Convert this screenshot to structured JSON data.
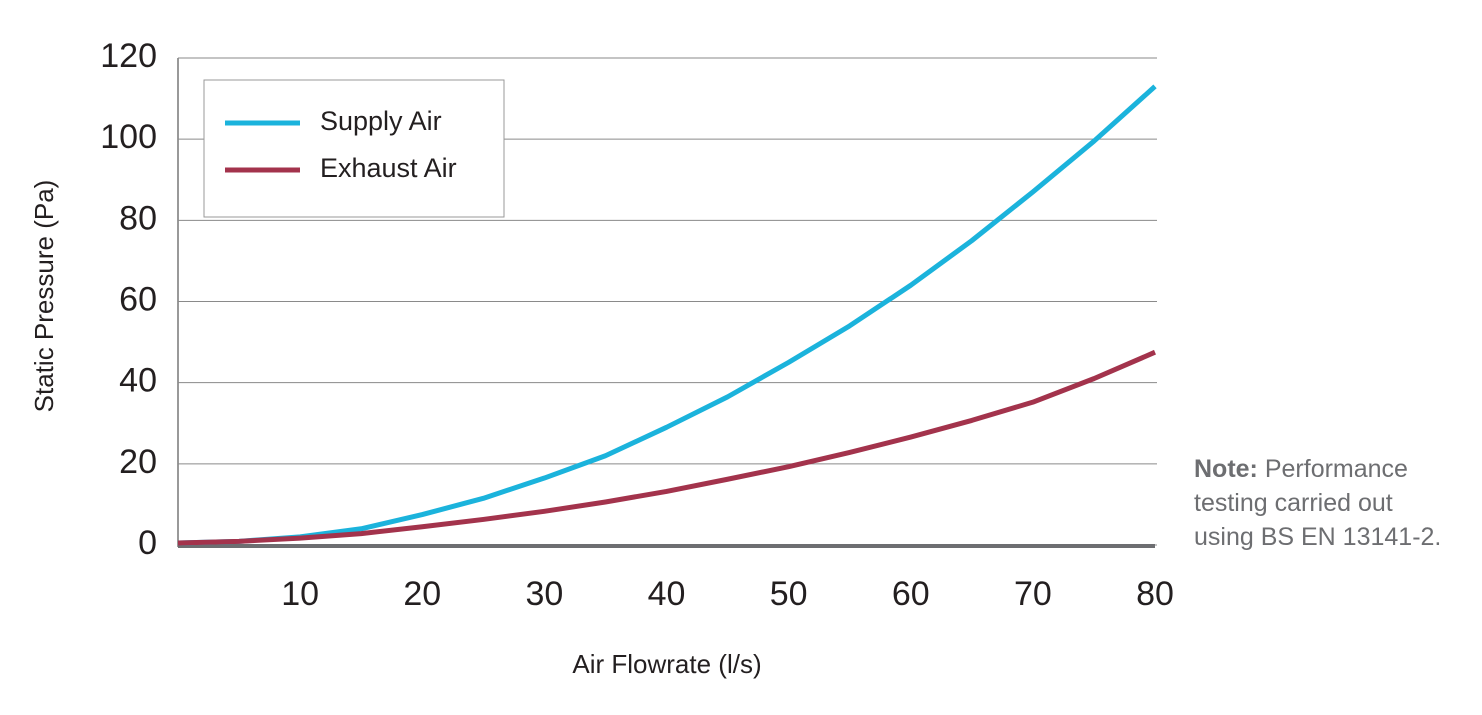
{
  "chart_data": {
    "type": "line",
    "x": [
      0,
      5,
      10,
      15,
      20,
      25,
      30,
      35,
      40,
      45,
      50,
      55,
      60,
      65,
      70,
      75,
      80
    ],
    "series": [
      {
        "name": "Supply Air",
        "color": "#1bb3dc",
        "values": [
          0.5,
          0.9,
          2,
          4,
          7.5,
          11.5,
          16.5,
          22,
          29,
          36.5,
          45,
          54,
          64,
          75,
          87,
          99.5,
          113
        ]
      },
      {
        "name": "Exhaust Air",
        "color": "#a3334c",
        "values": [
          0.5,
          0.9,
          1.7,
          2.8,
          4.5,
          6.3,
          8.3,
          10.6,
          13.2,
          16.2,
          19.3,
          22.8,
          26.6,
          30.7,
          35.2,
          41,
          47.5
        ]
      }
    ],
    "xlabel": "Air Flowrate (l/s)",
    "ylabel": "Static Pressure (Pa)",
    "xlim": [
      0,
      80
    ],
    "xticks": [
      10,
      20,
      30,
      40,
      50,
      60,
      70,
      80
    ],
    "ylim": [
      0,
      120
    ],
    "yticks": [
      0,
      20,
      40,
      60,
      80,
      100,
      120
    ],
    "grid": true,
    "legend": "upper left",
    "note_label": "Note:",
    "note_text": "Performance testing carried out using BS EN 13141-2."
  }
}
